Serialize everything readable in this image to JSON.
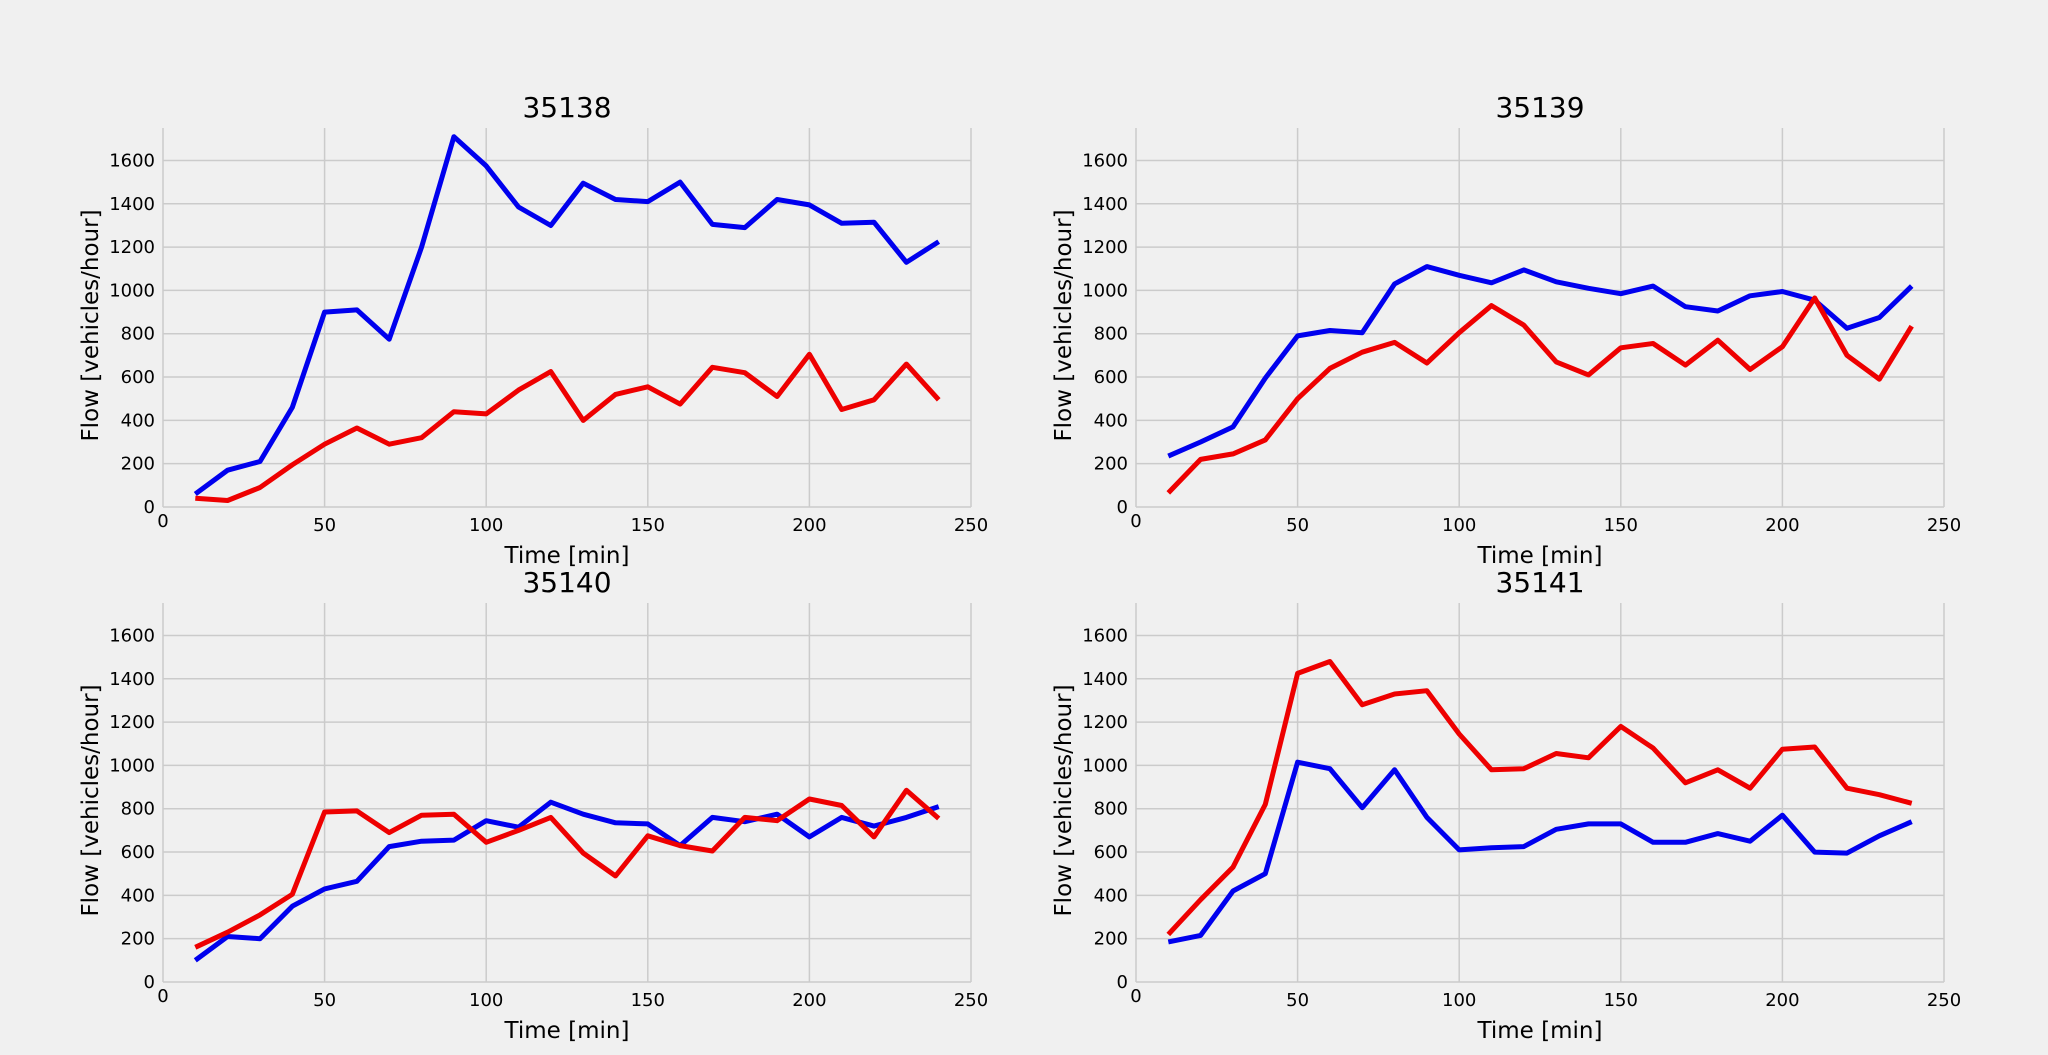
{
  "chart_data": [
    {
      "type": "line",
      "title": "35138",
      "xlabel": "Time [min]",
      "ylabel": "Flow [vehicles/hour]",
      "xlim": [
        0,
        250
      ],
      "ylim": [
        0,
        1750
      ],
      "xticks": [
        0,
        50,
        100,
        150,
        200,
        250
      ],
      "yticks": [
        0,
        200,
        400,
        600,
        800,
        1000,
        1200,
        1400,
        1600
      ],
      "grid": true,
      "x": [
        10,
        20,
        30,
        40,
        50,
        60,
        70,
        80,
        90,
        100,
        110,
        120,
        130,
        140,
        150,
        160,
        170,
        180,
        190,
        200,
        210,
        220,
        230,
        240
      ],
      "series": [
        {
          "color": "#0000ee",
          "values": [
            60,
            170,
            210,
            460,
            900,
            910,
            775,
            1200,
            1710,
            1575,
            1385,
            1300,
            1495,
            1420,
            1410,
            1500,
            1305,
            1290,
            1420,
            1395,
            1310,
            1315,
            1130,
            1225
          ]
        },
        {
          "color": "#ee0000",
          "values": [
            40,
            30,
            90,
            195,
            290,
            365,
            290,
            320,
            440,
            430,
            540,
            625,
            400,
            520,
            555,
            475,
            645,
            620,
            510,
            705,
            450,
            495,
            660,
            495
          ]
        }
      ]
    },
    {
      "type": "line",
      "title": "35139",
      "xlabel": "Time [min]",
      "ylabel": "Flow [vehicles/hour]",
      "xlim": [
        0,
        250
      ],
      "ylim": [
        0,
        1750
      ],
      "xticks": [
        0,
        50,
        100,
        150,
        200,
        250
      ],
      "yticks": [
        0,
        200,
        400,
        600,
        800,
        1000,
        1200,
        1400,
        1600
      ],
      "grid": true,
      "x": [
        10,
        20,
        30,
        40,
        50,
        60,
        70,
        80,
        90,
        100,
        110,
        120,
        130,
        140,
        150,
        160,
        170,
        180,
        190,
        200,
        210,
        220,
        230,
        240
      ],
      "series": [
        {
          "color": "#0000ee",
          "values": [
            235,
            300,
            370,
            595,
            790,
            815,
            805,
            1030,
            1110,
            1070,
            1035,
            1095,
            1040,
            1010,
            985,
            1020,
            925,
            905,
            975,
            995,
            955,
            825,
            875,
            1020
          ]
        },
        {
          "color": "#ee0000",
          "values": [
            65,
            220,
            245,
            310,
            500,
            640,
            715,
            760,
            665,
            805,
            930,
            840,
            670,
            610,
            735,
            755,
            655,
            770,
            635,
            740,
            965,
            700,
            590,
            835
          ]
        }
      ]
    },
    {
      "type": "line",
      "title": "35140",
      "xlabel": "Time [min]",
      "ylabel": "Flow [vehicles/hour]",
      "xlim": [
        0,
        250
      ],
      "ylim": [
        0,
        1750
      ],
      "xticks": [
        0,
        50,
        100,
        150,
        200,
        250
      ],
      "yticks": [
        0,
        200,
        400,
        600,
        800,
        1000,
        1200,
        1400,
        1600
      ],
      "grid": true,
      "x": [
        10,
        20,
        30,
        40,
        50,
        60,
        70,
        80,
        90,
        100,
        110,
        120,
        130,
        140,
        150,
        160,
        170,
        180,
        190,
        200,
        210,
        220,
        230,
        240
      ],
      "series": [
        {
          "color": "#0000ee",
          "values": [
            100,
            210,
            200,
            350,
            430,
            465,
            625,
            650,
            655,
            745,
            715,
            830,
            775,
            735,
            730,
            630,
            760,
            740,
            775,
            670,
            760,
            720,
            760,
            810
          ]
        },
        {
          "color": "#ee0000",
          "values": [
            160,
            230,
            310,
            405,
            785,
            790,
            690,
            770,
            775,
            645,
            700,
            760,
            595,
            490,
            675,
            630,
            605,
            760,
            745,
            845,
            815,
            670,
            885,
            755
          ]
        }
      ]
    },
    {
      "type": "line",
      "title": "35141",
      "xlabel": "Time [min]",
      "ylabel": "Flow [vehicles/hour]",
      "xlim": [
        0,
        250
      ],
      "ylim": [
        0,
        1750
      ],
      "xticks": [
        0,
        50,
        100,
        150,
        200,
        250
      ],
      "yticks": [
        0,
        200,
        400,
        600,
        800,
        1000,
        1200,
        1400,
        1600
      ],
      "grid": true,
      "x": [
        10,
        20,
        30,
        40,
        50,
        60,
        70,
        80,
        90,
        100,
        110,
        120,
        130,
        140,
        150,
        160,
        170,
        180,
        190,
        200,
        210,
        220,
        230,
        240
      ],
      "series": [
        {
          "color": "#0000ee",
          "values": [
            185,
            215,
            420,
            500,
            1015,
            985,
            805,
            980,
            760,
            610,
            620,
            625,
            705,
            730,
            730,
            645,
            645,
            685,
            650,
            770,
            600,
            595,
            675,
            740
          ]
        },
        {
          "color": "#ee0000",
          "values": [
            220,
            380,
            530,
            820,
            1425,
            1480,
            1280,
            1330,
            1345,
            1145,
            980,
            985,
            1055,
            1035,
            1180,
            1080,
            920,
            980,
            895,
            1075,
            1085,
            895,
            865,
            825
          ]
        }
      ]
    }
  ]
}
